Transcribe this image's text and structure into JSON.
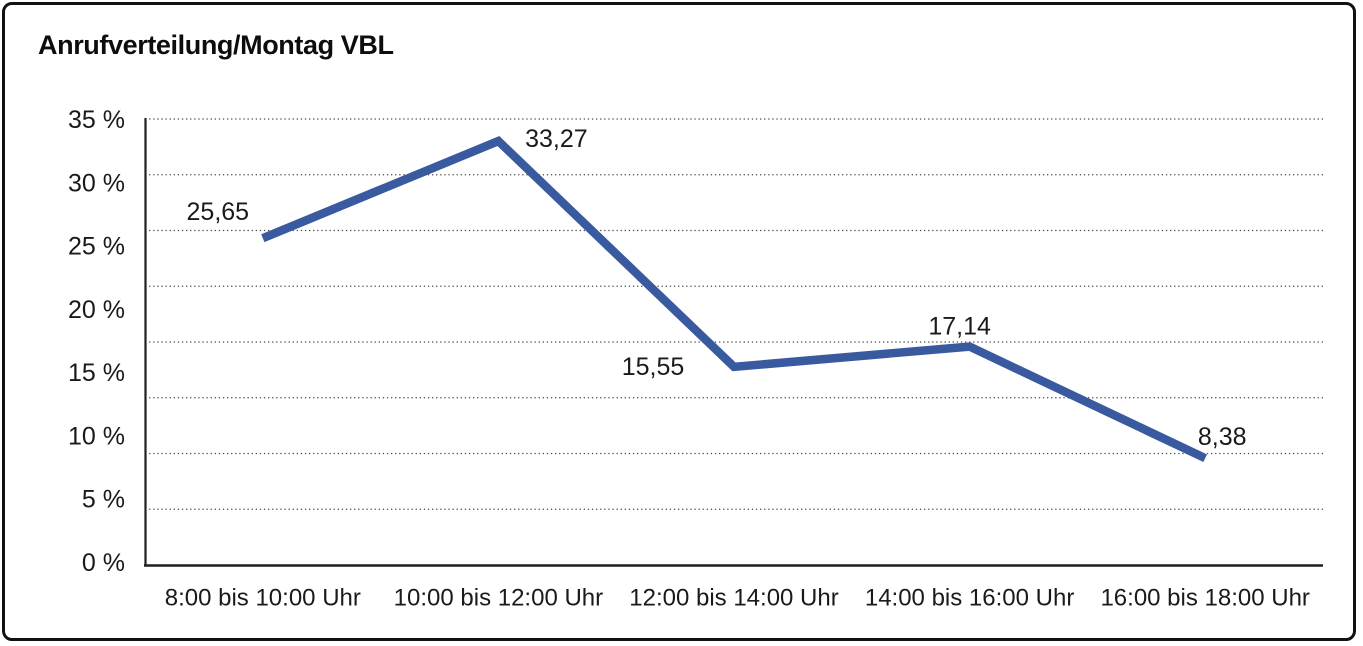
{
  "title": "Anrufverteilung/Montag VBL",
  "chart_data": {
    "type": "line",
    "title": "Anrufverteilung/Montag VBL",
    "categories": [
      "8:00 bis 10:00 Uhr",
      "10:00 bis 12:00 Uhr",
      "12:00 bis 14:00 Uhr",
      "14:00 bis 16:00 Uhr",
      "16:00 bis 18:00 Uhr"
    ],
    "series": [
      {
        "values": [
          25.65,
          33.27,
          15.55,
          17.14,
          8.38
        ]
      }
    ],
    "data_labels": [
      "25,65",
      "33,27",
      "15,55",
      "17,14",
      "8,38"
    ],
    "y_tick_labels": [
      "35 %",
      "30 %",
      "25 %",
      "20 %",
      "15 %",
      "10 %",
      "5 %",
      "0 %"
    ],
    "ylim": [
      0,
      35
    ],
    "xlabel": "",
    "ylabel": "",
    "grid": "horizontal-dotted",
    "legend_position": "none",
    "line_color": "#3A5AA0",
    "axis_color": "#1f1f1f",
    "grid_color": "#4a4a4a",
    "text_color": "#1a1a1a"
  }
}
